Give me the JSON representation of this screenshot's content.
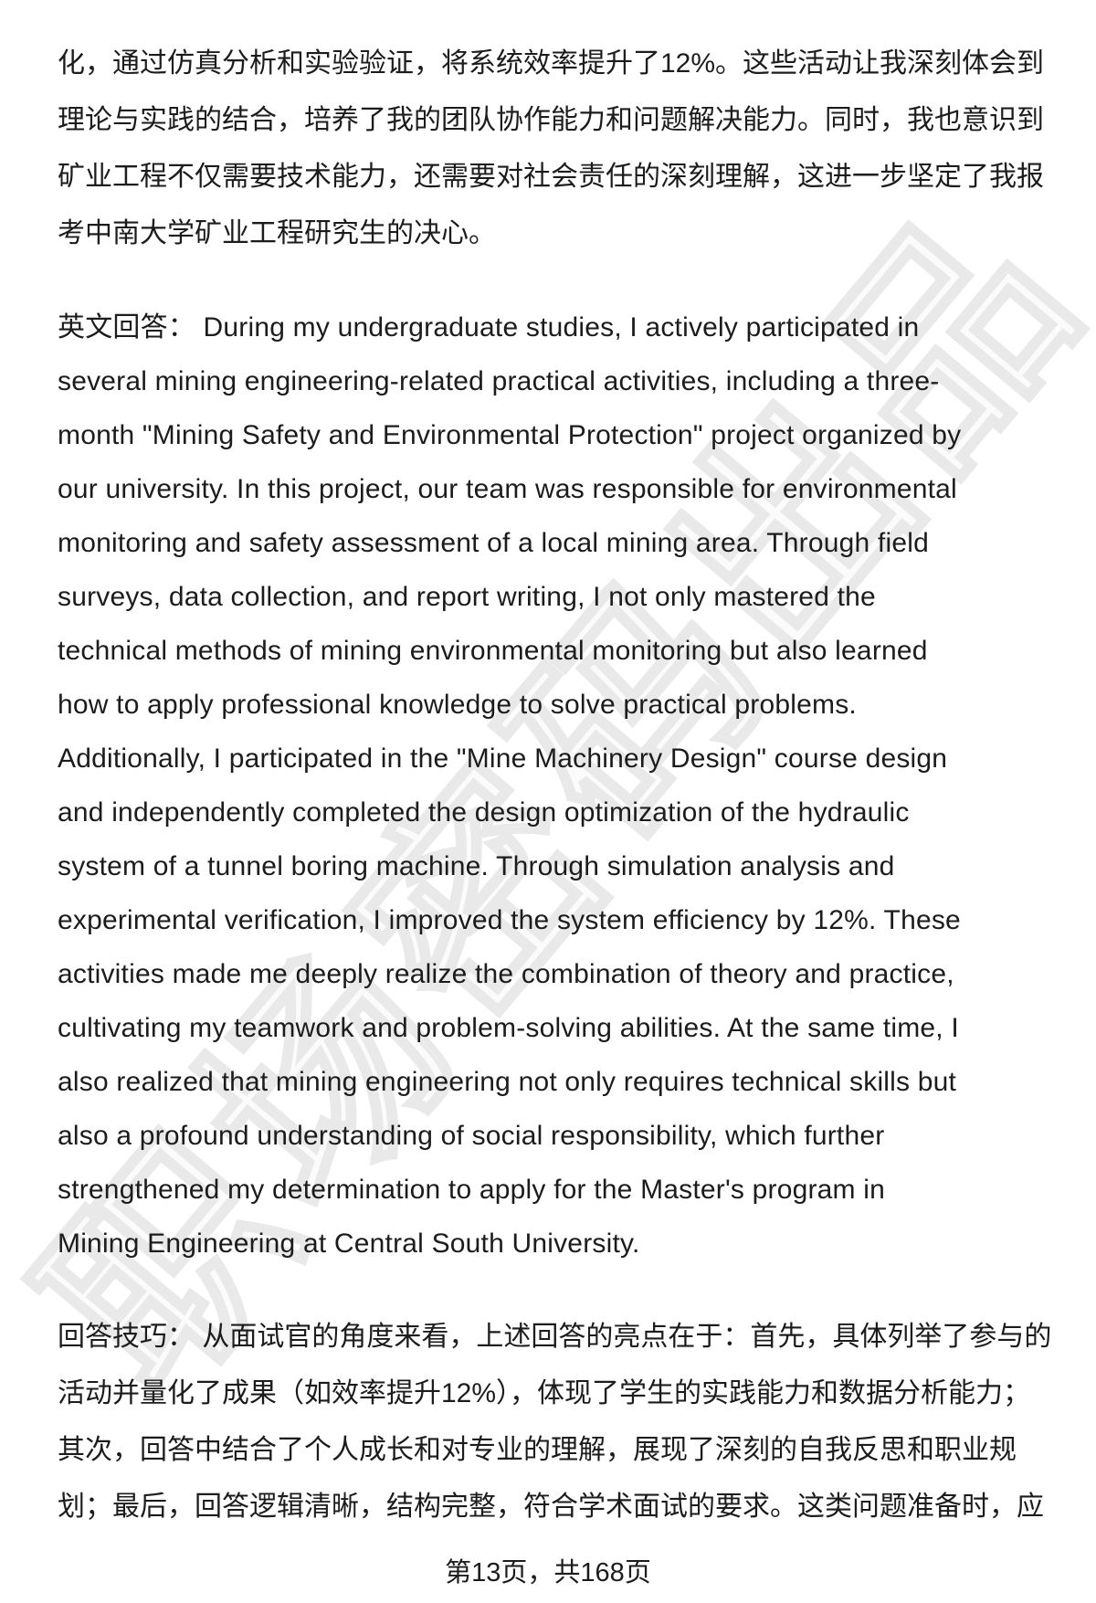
{
  "page": {
    "watermark": "职场密码出品",
    "footer": "第13页，共168页"
  },
  "paragraphs": [
    {
      "name": "chinese-answer-continuation",
      "lines": [
        "化，通过仿真分析和实验验证，将系统效率提升了12%。这些活动让我深刻体会到",
        "理论与实践的结合，培养了我的团队协作能力和问题解决能力。同时，我也意识到",
        "矿业工程不仅需要技术能力，还需要对社会责任的深刻理解，这进一步坚定了我报",
        "考中南大学矿业工程研究生的决心。"
      ]
    },
    {
      "name": "english-answer",
      "lines": [
        "英文回答： During my undergraduate studies, I actively participated in",
        "several mining engineering-related practical activities, including a three-",
        "month \"Mining Safety and Environmental Protection\" project organized by",
        "our university. In this project, our team was responsible for environmental",
        "monitoring and safety assessment of a local mining area. Through field",
        "surveys, data collection, and report writing, I not only mastered the",
        "technical methods of mining environmental monitoring but also learned",
        "how to apply professional knowledge to solve practical problems.",
        "Additionally, I participated in the \"Mine Machinery Design\" course design",
        "and independently completed the design optimization of the hydraulic",
        "system of a tunnel boring machine. Through simulation analysis and",
        "experimental verification, I improved the system efficiency by 12%. These",
        "activities made me deeply realize the combination of theory and practice,",
        "cultivating my teamwork and problem-solving abilities. At the same time, I",
        "also realized that mining engineering not only requires technical skills but",
        "also a profound understanding of social responsibility, which further",
        "strengthened my determination to apply for the Master's program in",
        "Mining Engineering at Central South University."
      ]
    },
    {
      "name": "answer-tips",
      "lines": [
        "回答技巧： 从面试官的角度来看，上述回答的亮点在于：首先，具体列举了参与的",
        "活动并量化了成果（如效率提升12%），体现了学生的实践能力和数据分析能力；",
        "其次，回答中结合了个人成长和对专业的理解，展现了深刻的自我反思和职业规",
        "划；最后，回答逻辑清晰，结构完整，符合学术面试的要求。这类问题准备时，应"
      ]
    }
  ]
}
